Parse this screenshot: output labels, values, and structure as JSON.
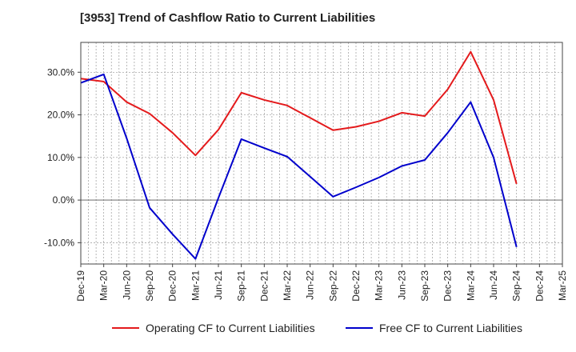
{
  "chart_data": {
    "type": "line",
    "title": "[3953]  Trend of Cashflow Ratio to Current Liabilities",
    "xlabel": "",
    "ylabel": "",
    "categories": [
      "Dec-19",
      "Mar-20",
      "Jun-20",
      "Sep-20",
      "Dec-20",
      "Mar-21",
      "Jun-21",
      "Sep-21",
      "Dec-21",
      "Mar-22",
      "Jun-22",
      "Sep-22",
      "Dec-22",
      "Mar-23",
      "Jun-23",
      "Sep-23",
      "Dec-23",
      "Mar-24",
      "Jun-24",
      "Sep-24",
      "Dec-24",
      "Mar-25"
    ],
    "x_tick_labels": [
      "Dec-19",
      "Mar-20",
      "Jun-20",
      "Sep-20",
      "Dec-20",
      "Mar-21",
      "Jun-21",
      "Sep-21",
      "Dec-21",
      "Mar-22",
      "Jun-22",
      "Sep-22",
      "Dec-22",
      "Mar-23",
      "Jun-23",
      "Sep-23",
      "Dec-23",
      "Mar-24",
      "Jun-24",
      "Sep-24",
      "Dec-24",
      "Mar-25"
    ],
    "y_ticks": [
      -10,
      0,
      10,
      20,
      30
    ],
    "y_tick_labels": [
      "-10.0%",
      "0.0%",
      "10.0%",
      "20.0%",
      "30.0%"
    ],
    "ylim": [
      -15,
      37
    ],
    "grid": true,
    "legend_position": "bottom",
    "series": [
      {
        "name": "Operating CF to Current Liabilities",
        "color": "#e41a1c",
        "x": [
          "Dec-19",
          "Mar-20",
          "Jun-20",
          "Sep-20",
          "Dec-20",
          "Mar-21",
          "Jun-21",
          "Sep-21",
          "Dec-21",
          "Mar-22",
          "Jun-22",
          "Sep-22",
          "Dec-22",
          "Mar-23",
          "Jun-23",
          "Sep-23",
          "Dec-23",
          "Mar-24",
          "Jun-24",
          "Sep-24"
        ],
        "values": [
          28.5,
          27.8,
          23.0,
          20.3,
          15.8,
          10.5,
          16.5,
          25.2,
          23.5,
          22.2,
          19.3,
          16.4,
          17.2,
          18.5,
          20.5,
          19.7,
          26.0,
          34.8,
          23.5,
          3.8
        ]
      },
      {
        "name": "Free CF to Current Liabilities",
        "color": "#0000cc",
        "x": [
          "Dec-19",
          "Mar-20",
          "Jun-20",
          "Sep-20",
          "Dec-20",
          "Mar-21",
          "Jun-21",
          "Sep-21",
          "Dec-21",
          "Mar-22",
          "Jun-22",
          "Sep-22",
          "Dec-22",
          "Mar-23",
          "Jun-23",
          "Sep-23",
          "Dec-23",
          "Mar-24",
          "Jun-24",
          "Sep-24"
        ],
        "values": [
          27.5,
          29.5,
          14.5,
          -1.8,
          -8.0,
          -13.8,
          0.5,
          14.3,
          12.2,
          10.2,
          5.5,
          0.8,
          3.0,
          5.3,
          8.0,
          9.4,
          15.8,
          23.0,
          10.0,
          -11.0
        ]
      }
    ]
  }
}
